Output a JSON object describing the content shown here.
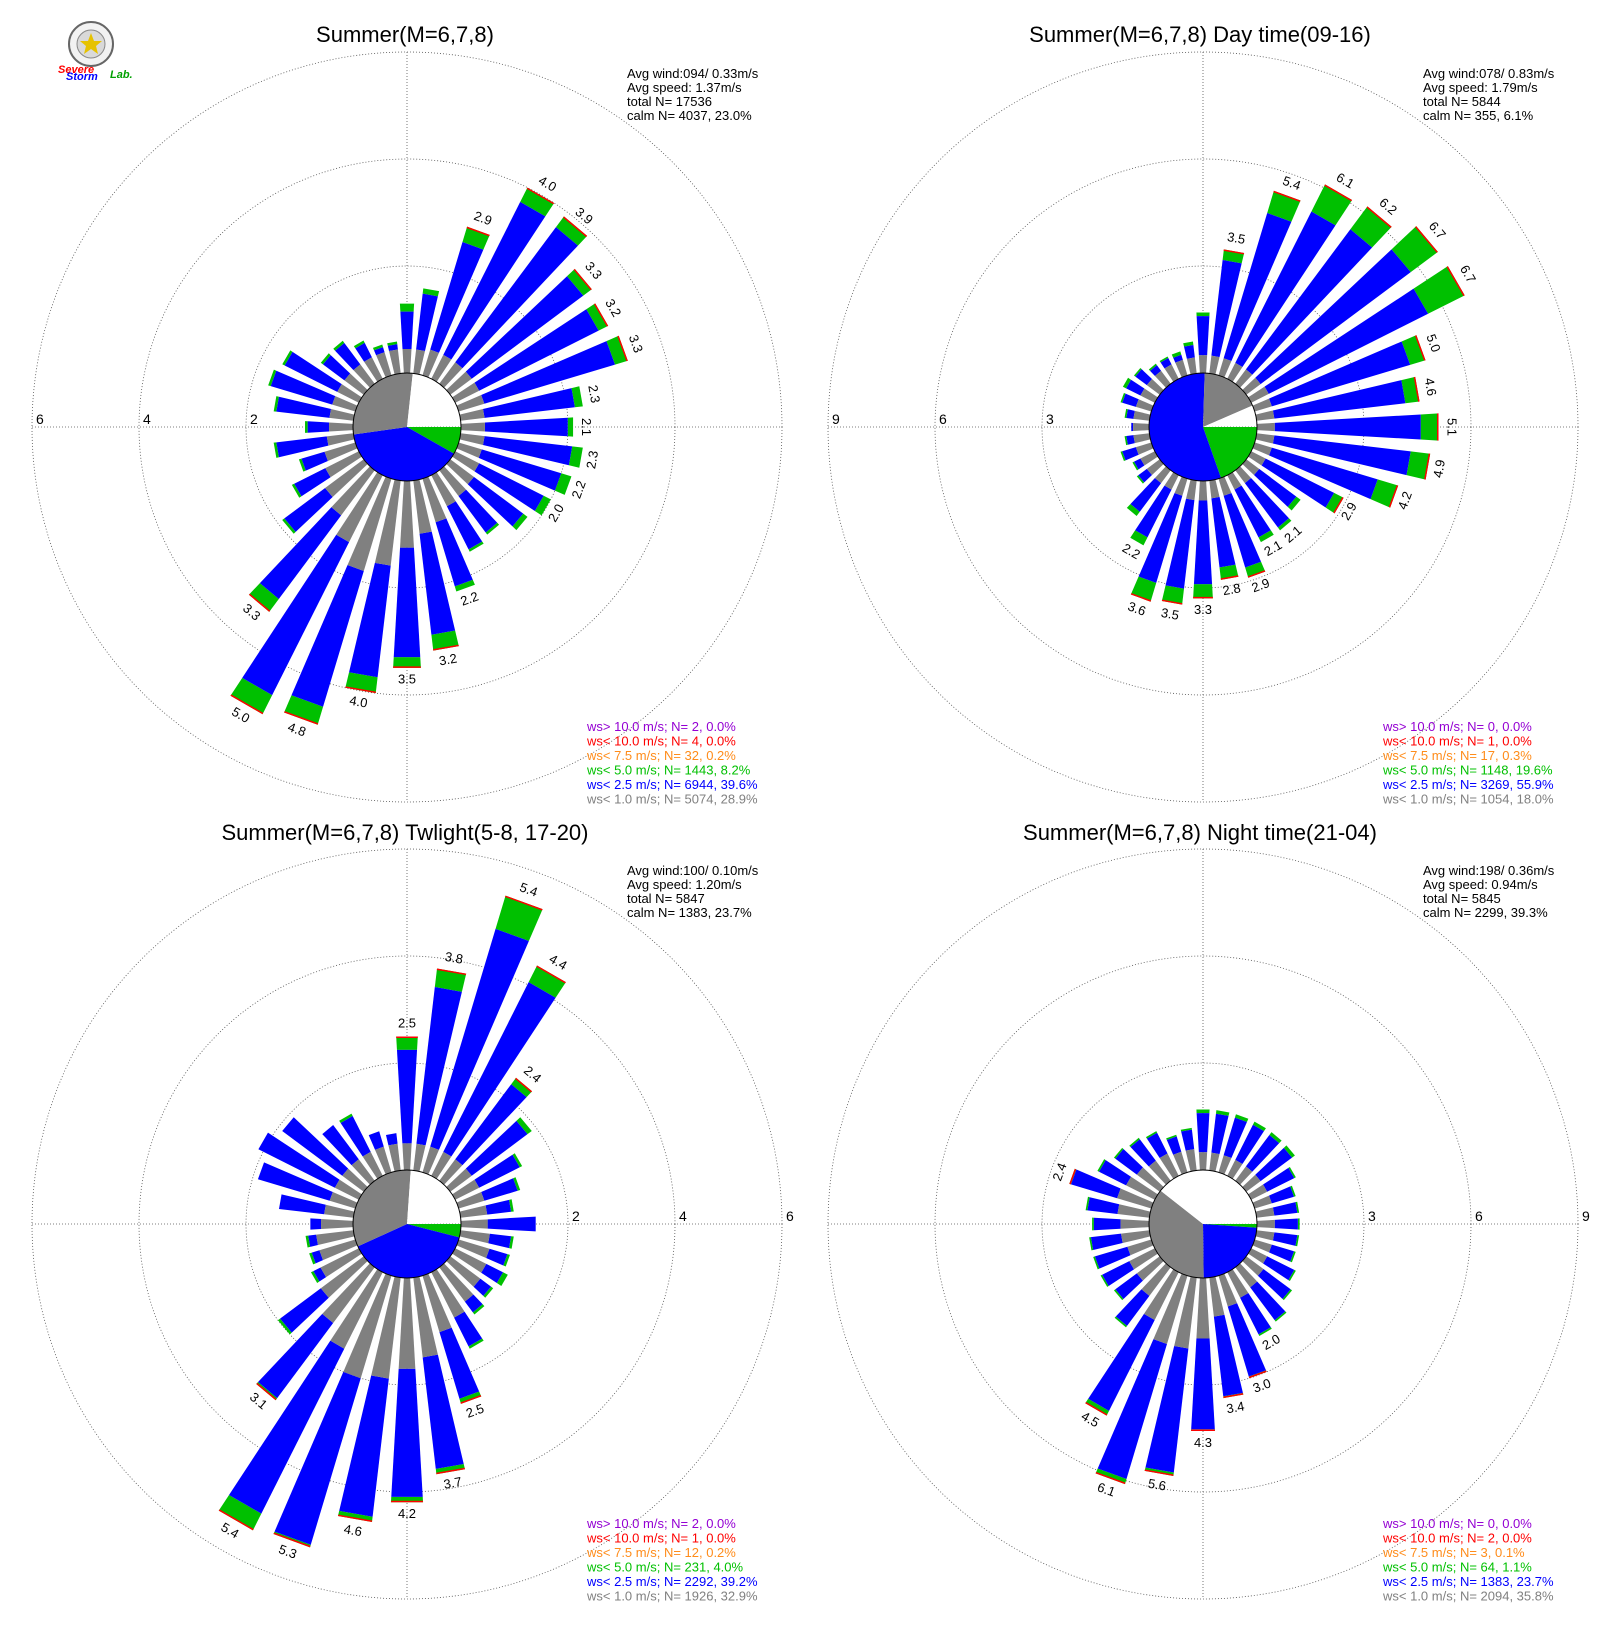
{
  "logo": {
    "line1": "Severe",
    "line2": "Storm",
    "line3": "Lab."
  },
  "colors": {
    "ws_gt_10": "#9400d3",
    "ws_lt_10": "#ff0000",
    "ws_lt_7_5": "#ff8c1a",
    "ws_lt_5": "#00c000",
    "ws_lt_2_5": "#0000ff",
    "ws_lt_1": "#808080",
    "calm": "#ffffff"
  },
  "chart_data": [
    {
      "type": "wind_rose",
      "title": "Summer(M=6,7,8)",
      "stats": [
        "Avg wind:094/ 0.33m/s",
        "Avg speed: 1.37m/s",
        "total N=     17536",
        "calm N=   4037,  23.0%"
      ],
      "rings": [
        2,
        4,
        6
      ],
      "ring_tick_side": "left",
      "inner_pie": [
        {
          "class": "ws_lt_5",
          "value": 8.2
        },
        {
          "class": "ws_lt_2_5",
          "value": 39.6
        },
        {
          "class": "ws_lt_1",
          "value": 28.9
        },
        {
          "class": "calm",
          "value": 23.0
        }
      ],
      "directions_deg": [
        0,
        10,
        20,
        30,
        40,
        50,
        60,
        70,
        80,
        90,
        100,
        110,
        120,
        130,
        140,
        150,
        160,
        170,
        180,
        190,
        200,
        210,
        220,
        230,
        240,
        250,
        260,
        270,
        280,
        290,
        300,
        310,
        320,
        330,
        340,
        350
      ],
      "bars": [
        [
          1.3,
          1.6,
          2.9,
          4.0,
          3.9,
          3.3,
          3.2,
          3.3,
          2.3,
          2.1,
          2.3,
          2.2,
          2.0,
          1.8,
          1.5,
          1.6,
          2.2,
          3.2,
          3.5,
          4.0,
          4.8,
          5.0,
          3.3,
          1.9,
          1.4,
          1.1,
          1.5,
          0.9,
          1.5,
          1.7,
          1.6,
          1.0,
          1.0,
          0.8,
          0.6,
          0.6
        ],
        [
          1.15,
          1.5,
          2.6,
          3.7,
          3.65,
          3.1,
          3.0,
          3.05,
          2.15,
          2.0,
          2.1,
          2.0,
          1.85,
          1.7,
          1.45,
          1.55,
          2.1,
          2.9,
          3.3,
          3.7,
          4.45,
          4.6,
          3.0,
          1.85,
          1.35,
          1.05,
          1.45,
          0.85,
          1.45,
          1.65,
          1.55,
          0.95,
          0.95,
          0.75,
          0.55,
          0.55
        ],
        [
          0.45,
          0.45,
          0.5,
          0.5,
          0.5,
          0.5,
          0.5,
          0.5,
          0.45,
          0.45,
          0.45,
          0.45,
          0.5,
          0.55,
          0.6,
          0.65,
          0.85,
          1.0,
          1.25,
          1.6,
          1.8,
          1.4,
          1.05,
          0.9,
          0.7,
          0.6,
          0.5,
          0.45,
          0.45,
          0.45,
          0.45,
          0.45,
          0.45,
          0.45,
          0.45,
          0.45
        ]
      ],
      "labels": [
        null,
        null,
        "2.9",
        "4.0",
        "3.9",
        "3.3",
        "3.2",
        "3.3",
        "2.3",
        "2.1",
        "2.3",
        "2.2",
        "2.0",
        null,
        null,
        null,
        "2.2",
        "3.2",
        "3.5",
        "4.0",
        "4.8",
        "5.0",
        "3.3",
        null,
        null,
        null,
        null,
        null,
        null,
        null,
        null,
        null,
        null,
        null,
        null,
        null
      ],
      "legend": [
        {
          "class": "ws_gt_10",
          "text": "ws> 10.0 m/s; N=     2,  0.0%"
        },
        {
          "class": "ws_lt_10",
          "text": "ws< 10.0 m/s; N=     4,  0.0%"
        },
        {
          "class": "ws_lt_7_5",
          "text": "ws<  7.5 m/s; N=    32,  0.2%"
        },
        {
          "class": "ws_lt_5",
          "text": "ws<  5.0 m/s; N=  1443,  8.2%"
        },
        {
          "class": "ws_lt_2_5",
          "text": "ws<  2.5 m/s; N=  6944, 39.6%"
        },
        {
          "class": "ws_lt_1",
          "text": "ws<  1.0 m/s; N=  5074, 28.9%"
        }
      ]
    },
    {
      "type": "wind_rose",
      "title": "Summer(M=6,7,8) Day time(09-16)",
      "stats": [
        "Avg wind:078/ 0.83m/s",
        "Avg speed: 1.79m/s",
        "total N=       5844",
        "calm N=    355,   6.1%"
      ],
      "rings": [
        3,
        6,
        9
      ],
      "ring_tick_side": "left",
      "inner_pie": [
        {
          "class": "ws_lt_5",
          "value": 19.6
        },
        {
          "class": "ws_lt_2_5",
          "value": 55.9
        },
        {
          "class": "ws_lt_1",
          "value": 18.0
        },
        {
          "class": "calm",
          "value": 6.1
        }
      ],
      "directions_deg": [
        0,
        10,
        20,
        30,
        40,
        50,
        60,
        70,
        80,
        90,
        100,
        110,
        120,
        130,
        140,
        150,
        160,
        170,
        180,
        190,
        200,
        210,
        220,
        230,
        240,
        250,
        260,
        270,
        280,
        290,
        300,
        310,
        320,
        330,
        340,
        350
      ],
      "bars": [
        [
          1.7,
          3.5,
          5.4,
          6.1,
          6.2,
          6.7,
          6.7,
          5.0,
          4.6,
          5.1,
          4.9,
          4.2,
          2.9,
          1.9,
          2.1,
          2.1,
          2.9,
          2.8,
          3.3,
          3.5,
          3.6,
          2.2,
          1.6,
          0.8,
          0.7,
          0.9,
          0.7,
          0.5,
          0.7,
          0.9,
          1.0,
          0.9,
          0.7,
          0.7,
          0.7,
          0.9
        ],
        [
          1.6,
          3.2,
          4.75,
          5.25,
          5.4,
          5.75,
          5.55,
          4.55,
          4.2,
          4.6,
          4.35,
          3.6,
          2.6,
          1.75,
          2.0,
          1.95,
          2.6,
          2.45,
          2.9,
          3.05,
          3.05,
          1.95,
          1.45,
          0.75,
          0.65,
          0.85,
          0.65,
          0.5,
          0.65,
          0.85,
          0.9,
          0.85,
          0.65,
          0.65,
          0.6,
          0.8
        ],
        [
          0.5,
          0.5,
          0.5,
          0.5,
          0.5,
          0.5,
          0.55,
          0.5,
          0.5,
          0.5,
          0.5,
          0.5,
          0.45,
          0.45,
          0.45,
          0.45,
          0.5,
          0.5,
          0.55,
          0.55,
          0.5,
          0.45,
          0.45,
          0.45,
          0.45,
          0.45,
          0.45,
          0.45,
          0.45,
          0.45,
          0.45,
          0.45,
          0.45,
          0.45,
          0.45,
          0.45
        ]
      ],
      "labels": [
        null,
        "3.5",
        "5.4",
        "6.1",
        "6.2",
        "6.7",
        "6.7",
        "5.0",
        "4.6",
        "5.1",
        "4.9",
        "4.2",
        "2.9",
        null,
        "2.1",
        "2.1",
        "2.9",
        "2.8",
        "3.3",
        "3.5",
        "3.6",
        "2.2",
        null,
        null,
        null,
        null,
        null,
        null,
        null,
        null,
        null,
        null,
        null,
        null,
        null,
        null
      ],
      "legend": [
        {
          "class": "ws_gt_10",
          "text": "ws> 10.0 m/s; N=     0,  0.0%"
        },
        {
          "class": "ws_lt_10",
          "text": "ws< 10.0 m/s; N=     1,  0.0%"
        },
        {
          "class": "ws_lt_7_5",
          "text": "ws<  7.5 m/s; N=    17,  0.3%"
        },
        {
          "class": "ws_lt_5",
          "text": "ws<  5.0 m/s; N=  1148, 19.6%"
        },
        {
          "class": "ws_lt_2_5",
          "text": "ws<  2.5 m/s; N=  3269, 55.9%"
        },
        {
          "class": "ws_lt_1",
          "text": "ws<  1.0 m/s; N=  1054, 18.0%"
        }
      ]
    },
    {
      "type": "wind_rose",
      "title": "Summer(M=6,7,8) Twlight(5-8, 17-20)",
      "stats": [
        "Avg wind:100/ 0.10m/s",
        "Avg speed: 1.20m/s",
        "total N=       5847",
        "calm N=   1383,  23.7%"
      ],
      "rings": [
        2,
        4,
        6
      ],
      "ring_tick_side": "right",
      "inner_pie": [
        {
          "class": "ws_lt_5",
          "value": 4.0
        },
        {
          "class": "ws_lt_2_5",
          "value": 39.2
        },
        {
          "class": "ws_lt_1",
          "value": 32.9
        },
        {
          "class": "calm",
          "value": 23.7
        }
      ],
      "directions_deg": [
        0,
        10,
        20,
        30,
        40,
        50,
        60,
        70,
        80,
        90,
        100,
        110,
        120,
        130,
        140,
        150,
        160,
        170,
        180,
        190,
        200,
        210,
        220,
        230,
        240,
        250,
        260,
        270,
        280,
        290,
        300,
        310,
        320,
        330,
        340,
        350
      ],
      "bars": [
        [
          2.5,
          3.8,
          5.4,
          4.4,
          2.4,
          1.9,
          1.4,
          1.2,
          1.0,
          1.4,
          1.0,
          1.0,
          1.1,
          1.0,
          1.1,
          1.6,
          2.5,
          3.7,
          4.2,
          4.6,
          5.3,
          5.4,
          3.1,
          2.0,
          1.0,
          0.9,
          0.9,
          0.8,
          1.4,
          1.9,
          2.1,
          1.9,
          1.3,
          1.3,
          0.8,
          0.7
        ],
        [
          2.25,
          3.45,
          4.75,
          4.05,
          2.25,
          1.8,
          1.35,
          1.15,
          0.95,
          1.4,
          0.95,
          0.95,
          1.0,
          0.95,
          1.05,
          1.55,
          2.4,
          3.6,
          4.1,
          4.5,
          5.25,
          5.05,
          3.05,
          1.95,
          0.95,
          0.85,
          0.85,
          0.8,
          1.4,
          1.9,
          2.1,
          1.9,
          1.3,
          1.25,
          0.8,
          0.7
        ],
        [
          0.5,
          0.5,
          0.5,
          0.5,
          0.5,
          0.5,
          0.5,
          0.5,
          0.5,
          0.5,
          0.55,
          0.6,
          0.65,
          0.7,
          0.8,
          0.95,
          1.1,
          1.5,
          1.7,
          1.9,
          2.0,
          1.6,
          1.3,
          1.0,
          0.8,
          0.7,
          0.7,
          0.6,
          0.55,
          0.5,
          0.5,
          0.5,
          0.5,
          0.5,
          0.5,
          0.5
        ]
      ],
      "labels": [
        "2.5",
        "3.8",
        "5.4",
        "4.4",
        "2.4",
        null,
        null,
        null,
        null,
        null,
        null,
        null,
        null,
        null,
        null,
        null,
        "2.5",
        "3.7",
        "4.2",
        "4.6",
        "5.3",
        "5.4",
        "3.1",
        null,
        null,
        null,
        null,
        null,
        null,
        null,
        null,
        null,
        null,
        null,
        null,
        null
      ],
      "legend": [
        {
          "class": "ws_gt_10",
          "text": "ws> 10.0 m/s; N=     2,  0.0%"
        },
        {
          "class": "ws_lt_10",
          "text": "ws< 10.0 m/s; N=     1,  0.0%"
        },
        {
          "class": "ws_lt_7_5",
          "text": "ws<  7.5 m/s; N=    12,  0.2%"
        },
        {
          "class": "ws_lt_5",
          "text": "ws<  5.0 m/s; N=   231,  4.0%"
        },
        {
          "class": "ws_lt_2_5",
          "text": "ws<  2.5 m/s; N=  2292, 39.2%"
        },
        {
          "class": "ws_lt_1",
          "text": "ws<  1.0 m/s; N=  1926, 32.9%"
        }
      ]
    },
    {
      "type": "wind_rose",
      "title": "Summer(M=6,7,8) Night time(21-04)",
      "stats": [
        "Avg wind:198/ 0.36m/s",
        "Avg speed: 0.94m/s",
        "total N=       5845",
        "calm N=   2299,  39.3%"
      ],
      "rings": [
        3,
        6,
        9
      ],
      "ring_tick_side": "right",
      "inner_pie": [
        {
          "class": "ws_lt_5",
          "value": 1.1
        },
        {
          "class": "ws_lt_2_5",
          "value": 23.7
        },
        {
          "class": "ws_lt_1",
          "value": 35.8
        },
        {
          "class": "calm",
          "value": 39.3
        }
      ],
      "directions_deg": [
        0,
        10,
        20,
        30,
        40,
        50,
        60,
        70,
        80,
        90,
        100,
        110,
        120,
        130,
        140,
        150,
        160,
        170,
        180,
        190,
        200,
        210,
        220,
        230,
        240,
        250,
        260,
        270,
        280,
        290,
        300,
        310,
        320,
        330,
        340,
        350
      ],
      "bars": [
        [
          1.7,
          1.7,
          1.7,
          1.7,
          1.7,
          1.7,
          1.4,
          1.2,
          1.2,
          1.2,
          1.2,
          1.2,
          1.4,
          1.6,
          1.9,
          2.0,
          3.0,
          3.4,
          4.3,
          5.6,
          6.1,
          4.5,
          2.1,
          1.6,
          1.7,
          1.7,
          1.7,
          1.6,
          1.8,
          2.4,
          1.8,
          1.6,
          1.5,
          1.4,
          1.1,
          1.2
        ],
        [
          1.6,
          1.6,
          1.6,
          1.6,
          1.6,
          1.6,
          1.35,
          1.15,
          1.15,
          1.15,
          1.15,
          1.15,
          1.35,
          1.55,
          1.85,
          1.95,
          2.95,
          3.35,
          4.25,
          5.5,
          5.95,
          4.35,
          2.05,
          1.55,
          1.65,
          1.65,
          1.65,
          1.55,
          1.75,
          2.35,
          1.75,
          1.55,
          1.45,
          1.35,
          1.05,
          1.15
        ],
        [
          0.5,
          0.5,
          0.5,
          0.5,
          0.5,
          0.5,
          0.5,
          0.5,
          0.5,
          0.5,
          0.5,
          0.5,
          0.5,
          0.6,
          0.7,
          0.8,
          0.9,
          1.1,
          1.7,
          2.0,
          2.0,
          1.5,
          1.0,
          0.8,
          0.8,
          0.7,
          0.8,
          0.8,
          0.9,
          1.0,
          0.9,
          0.8,
          0.7,
          0.7,
          0.6,
          0.6
        ]
      ],
      "labels": [
        null,
        null,
        null,
        null,
        null,
        null,
        null,
        null,
        null,
        null,
        null,
        null,
        null,
        null,
        null,
        "2.0",
        "3.0",
        "3.4",
        "4.3",
        "5.6",
        "6.1",
        "4.5",
        null,
        null,
        null,
        null,
        null,
        null,
        null,
        "2.4",
        null,
        null,
        null,
        null,
        null,
        null
      ],
      "legend": [
        {
          "class": "ws_gt_10",
          "text": "ws> 10.0 m/s; N=     0,  0.0%"
        },
        {
          "class": "ws_lt_10",
          "text": "ws< 10.0 m/s; N=     2,  0.0%"
        },
        {
          "class": "ws_lt_7_5",
          "text": "ws<  7.5 m/s; N=     3,  0.1%"
        },
        {
          "class": "ws_lt_5",
          "text": "ws<  5.0 m/s; N=    64,  1.1%"
        },
        {
          "class": "ws_lt_2_5",
          "text": "ws<  2.5 m/s; N=  1383, 23.7%"
        },
        {
          "class": "ws_lt_1",
          "text": "ws<  1.0 m/s; N=  2094, 35.8%"
        }
      ]
    }
  ]
}
